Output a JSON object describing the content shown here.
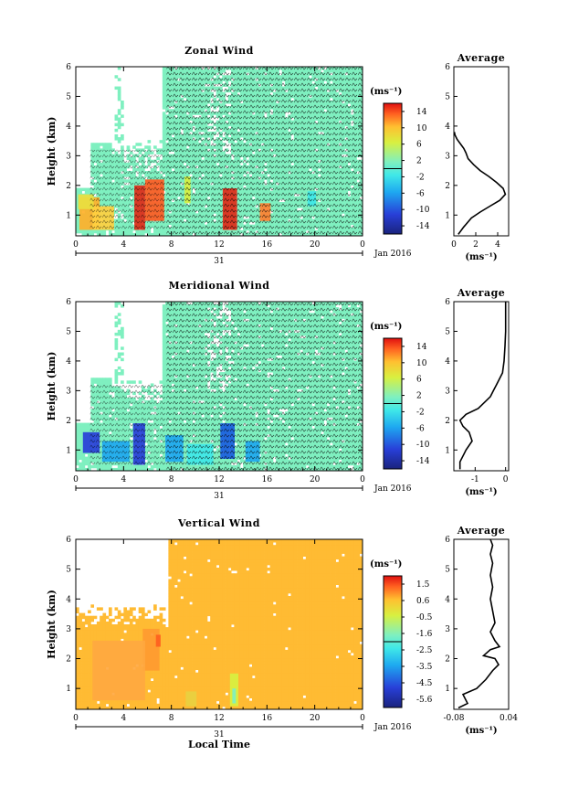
{
  "chart_data": [
    {
      "type": "heatmap",
      "title": "Zonal Wind",
      "ylabel": "Height (km)",
      "xlim": [
        0,
        24
      ],
      "ylim": [
        0.3,
        6
      ],
      "x_ticks": [
        "0",
        "4",
        "8",
        "12",
        "16",
        "20",
        "0"
      ],
      "y_ticks": [
        "1",
        "2",
        "3",
        "4",
        "5",
        "6"
      ],
      "date_label": "31",
      "month_label": "Jan 2016",
      "colorbar": {
        "unit": "(ms⁻¹)",
        "ticks": [
          "14",
          "10",
          "6",
          "2",
          "-2",
          "-6",
          "-10",
          "-14"
        ],
        "range": [
          -14,
          14
        ]
      },
      "profile": {
        "title": "Average",
        "unit": "(ms⁻¹)",
        "xlim": [
          0,
          5
        ],
        "x_ticks": [
          "0",
          "2",
          "4"
        ],
        "ylim": [
          0.3,
          6
        ],
        "x": [
          0.4,
          0.9,
          1.6,
          2.4,
          3.3,
          4.2,
          4.7,
          4.5,
          3.9,
          3.2,
          2.4,
          1.8,
          1.3,
          1.1,
          0.9,
          0.6,
          0.3,
          0.1,
          0.05
        ],
        "y": [
          0.35,
          0.6,
          0.9,
          1.1,
          1.3,
          1.5,
          1.7,
          1.9,
          2.1,
          2.3,
          2.5,
          2.7,
          2.9,
          3.1,
          3.25,
          3.4,
          3.55,
          3.7,
          3.8
        ]
      }
    },
    {
      "type": "heatmap",
      "title": "Meridional Wind",
      "ylabel": "Height (km)",
      "xlim": [
        0,
        24
      ],
      "ylim": [
        0.3,
        6
      ],
      "x_ticks": [
        "0",
        "4",
        "8",
        "12",
        "16",
        "20",
        "0"
      ],
      "y_ticks": [
        "1",
        "2",
        "3",
        "4",
        "5",
        "6"
      ],
      "date_label": "31",
      "month_label": "Jan 2016",
      "colorbar": {
        "unit": "(ms⁻¹)",
        "ticks": [
          "14",
          "10",
          "6",
          "2",
          "-2",
          "-6",
          "-10",
          "-14"
        ],
        "range": [
          -14,
          14
        ]
      },
      "profile": {
        "title": "Average",
        "unit": "(ms⁻¹)",
        "xlim": [
          -1.7,
          0.1
        ],
        "x_ticks": [
          "-1",
          "0"
        ],
        "ylim": [
          0.3,
          6
        ],
        "x": [
          -1.5,
          -1.5,
          -1.4,
          -1.3,
          -1.1,
          -1.2,
          -1.4,
          -1.5,
          -1.3,
          -0.9,
          -0.7,
          -0.5,
          -0.4,
          -0.3,
          -0.2,
          -0.1,
          -0.05,
          -0.02,
          0.0,
          0.0
        ],
        "y": [
          0.35,
          0.6,
          0.8,
          1.0,
          1.3,
          1.6,
          1.8,
          2.0,
          2.2,
          2.4,
          2.6,
          2.8,
          3.0,
          3.2,
          3.4,
          3.6,
          4.0,
          4.5,
          5.0,
          6.0
        ]
      }
    },
    {
      "type": "heatmap",
      "title": "Vertical Wind",
      "xlabel": "Local Time",
      "ylabel": "Height (km)",
      "xlim": [
        0,
        24
      ],
      "ylim": [
        0.3,
        6
      ],
      "x_ticks": [
        "0",
        "4",
        "8",
        "12",
        "16",
        "20",
        "0"
      ],
      "y_ticks": [
        "1",
        "2",
        "3",
        "4",
        "5",
        "6"
      ],
      "date_label": "31",
      "month_label": "Jan 2016",
      "colorbar": {
        "unit": "(ms⁻¹)",
        "ticks": [
          "1.5",
          "0.6",
          "-0.5",
          "-1.6",
          "-2.5",
          "-3.5",
          "-4.5",
          "-5.6"
        ],
        "range": [
          -5.6,
          1.5
        ]
      },
      "profile": {
        "title": "Average",
        "unit": "(ms⁻¹)",
        "xlim": [
          -0.08,
          0.04
        ],
        "x_ticks": [
          "-0.08",
          "0.04"
        ],
        "ylim": [
          0.3,
          6
        ],
        "x": [
          -0.07,
          -0.05,
          -0.06,
          -0.03,
          -0.01,
          0.005,
          0.018,
          0.01,
          -0.015,
          0.0,
          0.02,
          0.01,
          0.0,
          0.01,
          0.005,
          0.0,
          0.005,
          0.0,
          0.005,
          0.0,
          0.005,
          0.0
        ],
        "y": [
          0.35,
          0.5,
          0.8,
          1.0,
          1.3,
          1.6,
          1.8,
          2.0,
          2.1,
          2.3,
          2.4,
          2.6,
          2.9,
          3.2,
          3.6,
          4.0,
          4.4,
          4.8,
          5.2,
          5.5,
          5.8,
          6.0
        ]
      }
    }
  ]
}
